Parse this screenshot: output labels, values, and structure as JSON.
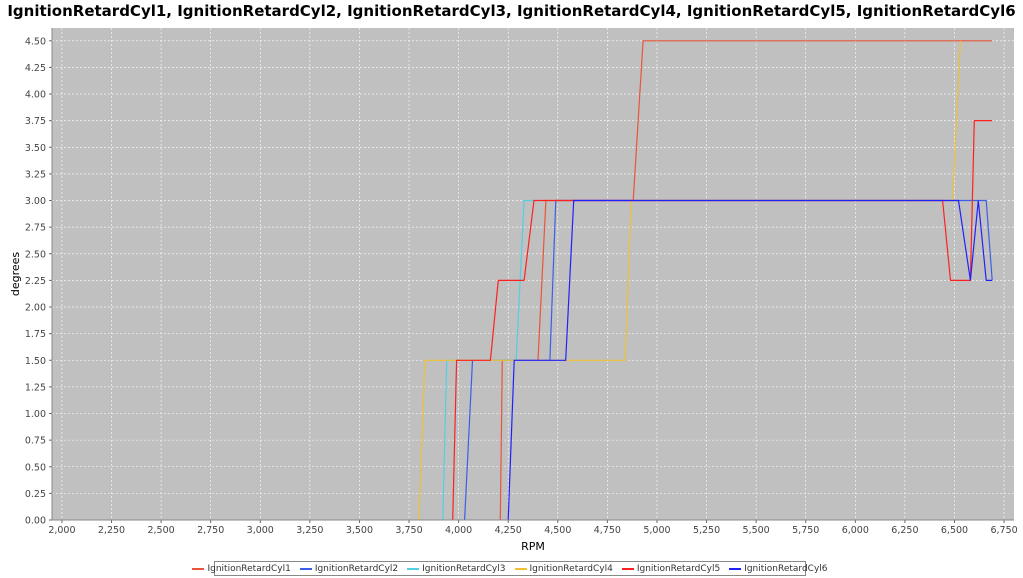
{
  "chart_data": {
    "type": "line",
    "title": "IgnitionRetardCyl1, IgnitionRetardCyl2, IgnitionRetardCyl3, IgnitionRetardCyl4, IgnitionRetardCyl5, IgnitionRetardCyl6",
    "xlabel": "RPM",
    "ylabel": "degrees",
    "xlim": [
      1950,
      6800
    ],
    "ylim": [
      0,
      4.62
    ],
    "xticks": [
      "2,000",
      "2,250",
      "2,500",
      "2,750",
      "3,000",
      "3,250",
      "3,500",
      "3,750",
      "4,000",
      "4,250",
      "4,500",
      "4,750",
      "5,000",
      "5,250",
      "5,500",
      "5,750",
      "6,000",
      "6,250",
      "6,500",
      "6,750"
    ],
    "yticks": [
      "0.00",
      "0.25",
      "0.50",
      "0.75",
      "1.00",
      "1.25",
      "1.50",
      "1.75",
      "2.00",
      "2.25",
      "2.50",
      "2.75",
      "3.00",
      "3.25",
      "3.50",
      "3.75",
      "4.00",
      "4.25",
      "4.50"
    ],
    "grid": true,
    "background": "#c0c0c0",
    "legend_position": "bottom",
    "series": [
      {
        "name": "IgnitionRetardCyl1",
        "color": "#e8553a",
        "points": [
          [
            4210,
            0
          ],
          [
            4220,
            1.5
          ],
          [
            4400,
            1.5
          ],
          [
            4440,
            3.0
          ],
          [
            4880,
            3.0
          ],
          [
            4930,
            4.5
          ],
          [
            6690,
            4.5
          ]
        ]
      },
      {
        "name": "IgnitionRetardCyl2",
        "color": "#3a5fe8",
        "points": [
          [
            4030,
            0
          ],
          [
            4070,
            1.5
          ],
          [
            4460,
            1.5
          ],
          [
            4490,
            3.0
          ],
          [
            6660,
            3.0
          ],
          [
            6690,
            2.25
          ]
        ]
      },
      {
        "name": "IgnitionRetardCyl3",
        "color": "#50d0e0",
        "points": [
          [
            3920,
            0
          ],
          [
            3940,
            1.5
          ],
          [
            4290,
            1.5
          ],
          [
            4330,
            3.0
          ],
          [
            4380,
            3.0
          ]
        ]
      },
      {
        "name": "IgnitionRetardCyl4",
        "color": "#f0c030",
        "points": [
          [
            3800,
            0
          ],
          [
            3830,
            1.5
          ],
          [
            4840,
            1.5
          ],
          [
            4870,
            3.0
          ],
          [
            6490,
            3.0
          ],
          [
            6530,
            4.5
          ]
        ]
      },
      {
        "name": "IgnitionRetardCyl5",
        "color": "#ff2020",
        "points": [
          [
            3970,
            0
          ],
          [
            3990,
            1.5
          ],
          [
            4160,
            1.5
          ],
          [
            4200,
            2.25
          ],
          [
            4330,
            2.25
          ],
          [
            4380,
            3.0
          ],
          [
            6440,
            3.0
          ],
          [
            6480,
            2.25
          ],
          [
            6580,
            2.25
          ],
          [
            6600,
            3.75
          ],
          [
            6690,
            3.75
          ]
        ]
      },
      {
        "name": "IgnitionRetardCyl6",
        "color": "#2020ff",
        "points": [
          [
            4250,
            0
          ],
          [
            4280,
            1.5
          ],
          [
            4540,
            1.5
          ],
          [
            4580,
            3.0
          ],
          [
            6520,
            3.0
          ],
          [
            6580,
            2.25
          ],
          [
            6620,
            3.0
          ],
          [
            6660,
            2.25
          ],
          [
            6690,
            2.25
          ]
        ]
      }
    ]
  }
}
